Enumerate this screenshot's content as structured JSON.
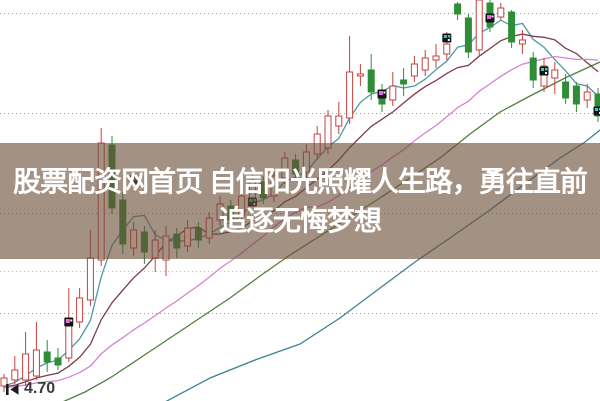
{
  "banner": {
    "line1": "股票配资网首页 自信阳光照耀人生路，勇往直前",
    "line2": "追逐无悔梦想",
    "background_color": "rgba(106,77,56,0.62)",
    "text_color": "#ffffff"
  },
  "price_axis": {
    "min_label": "4.70"
  },
  "chart_data": {
    "type": "candlestick",
    "title": "",
    "x_axis": {
      "start": 4,
      "step": 10.8,
      "body_width": 6
    },
    "y_axis": {
      "top_price": 6.6,
      "price_per_pixel": 0.005,
      "ylim": [
        4.59,
        6.6
      ],
      "gridline_prices": [
        6.535,
        6.035,
        5.535,
        5.035
      ],
      "special_line_price": 5.245,
      "visible_min_label": "4.70",
      "grid_on": true
    },
    "colors": {
      "up": "#c5423f",
      "up_fill": "#ffffff",
      "down": "#2f8d38",
      "grid": "#9b9b9b",
      "special_line": "#e2abc0",
      "marker_box": "#141414",
      "marker_teal": "#35c9c1",
      "marker_purple": "#e06ae0",
      "marker_white": "#f2f2f2"
    },
    "candles": [
      [
        4.67,
        4.73,
        4.64,
        4.71
      ],
      [
        4.7,
        4.82,
        4.68,
        4.75
      ],
      [
        4.7,
        4.94,
        4.67,
        4.83
      ],
      [
        4.72,
        4.99,
        4.7,
        4.85
      ],
      [
        4.84,
        4.9,
        4.74,
        4.79
      ],
      [
        4.81,
        4.86,
        4.75,
        4.775
      ],
      [
        4.81,
        5.16,
        4.79,
        5.0
      ],
      [
        4.99,
        5.16,
        4.96,
        5.11
      ],
      [
        5.1,
        5.45,
        5.07,
        5.31
      ],
      [
        5.3,
        5.96,
        5.27,
        5.885
      ],
      [
        5.875,
        5.92,
        5.53,
        5.56
      ],
      [
        5.6,
        5.64,
        5.33,
        5.38
      ],
      [
        5.36,
        5.49,
        5.32,
        5.45
      ],
      [
        5.44,
        5.47,
        5.28,
        5.34
      ],
      [
        5.31,
        5.45,
        5.24,
        5.4
      ],
      [
        5.3,
        5.47,
        5.22,
        5.42
      ],
      [
        5.43,
        5.46,
        5.31,
        5.36
      ],
      [
        5.37,
        5.5,
        5.34,
        5.46
      ],
      [
        5.46,
        5.49,
        5.36,
        5.4
      ],
      [
        5.41,
        5.54,
        5.38,
        5.51
      ],
      [
        5.5,
        5.62,
        5.47,
        5.58
      ],
      [
        5.57,
        5.6,
        5.46,
        5.5
      ],
      [
        5.52,
        5.65,
        5.49,
        5.62
      ],
      [
        5.61,
        5.74,
        5.58,
        5.7
      ],
      [
        5.69,
        5.72,
        5.58,
        5.61
      ],
      [
        5.62,
        5.76,
        5.59,
        5.72
      ],
      [
        5.71,
        5.84,
        5.68,
        5.81
      ],
      [
        5.8,
        5.83,
        5.7,
        5.73
      ],
      [
        5.74,
        5.88,
        5.71,
        5.84
      ],
      [
        5.83,
        5.97,
        5.8,
        5.93
      ],
      [
        5.86,
        6.05,
        5.83,
        6.02
      ],
      [
        5.97,
        6.09,
        5.93,
        6.02
      ],
      [
        6.01,
        6.42,
        5.98,
        6.24
      ],
      [
        6.22,
        6.28,
        6.17,
        6.23
      ],
      [
        6.25,
        6.33,
        6.1,
        6.14
      ],
      [
        6.12,
        6.18,
        6.04,
        6.08
      ],
      [
        6.1,
        6.24,
        6.07,
        6.17
      ],
      [
        6.2,
        6.26,
        6.12,
        6.18
      ],
      [
        6.22,
        6.32,
        6.19,
        6.28
      ],
      [
        6.25,
        6.35,
        6.22,
        6.31
      ],
      [
        6.3,
        6.38,
        6.26,
        6.32
      ],
      [
        6.33,
        6.44,
        6.3,
        6.38
      ],
      [
        6.58,
        6.59,
        6.5,
        6.53
      ],
      [
        6.51,
        6.53,
        6.31,
        6.34
      ],
      [
        6.35,
        6.6,
        6.32,
        6.6
      ],
      [
        6.585,
        6.6,
        6.44,
        6.465
      ],
      [
        6.515,
        6.585,
        6.5,
        6.56
      ],
      [
        6.54,
        6.55,
        6.36,
        6.39
      ],
      [
        6.38,
        6.45,
        6.33,
        6.4
      ],
      [
        6.31,
        6.34,
        6.16,
        6.2
      ],
      [
        6.17,
        6.31,
        6.14,
        6.27
      ],
      [
        6.21,
        6.29,
        6.13,
        6.25
      ],
      [
        6.19,
        6.23,
        6.08,
        6.11
      ],
      [
        6.17,
        6.19,
        6.04,
        6.08
      ],
      [
        6.1,
        6.18,
        6.06,
        6.14
      ],
      [
        6.13,
        6.16,
        5.99,
        6.02
      ]
    ],
    "ma_lines": [
      {
        "name": "MA5",
        "window": 5,
        "color": "#4e99a2"
      },
      {
        "name": "MA10",
        "window": 10,
        "color": "#7f3c4e"
      },
      {
        "name": "MA20",
        "window": 20,
        "color": "#db7fd0"
      }
    ],
    "ma_seed": 4.66,
    "overlay_lines": [
      {
        "name": "long-ma-green",
        "color": "#50803f",
        "points": [
          [
            58,
            4.58
          ],
          [
            85,
            4.64
          ],
          [
            110,
            4.71
          ],
          [
            140,
            4.81
          ],
          [
            170,
            4.91
          ],
          [
            200,
            5.01
          ],
          [
            230,
            5.11
          ],
          [
            260,
            5.22
          ],
          [
            290,
            5.325
          ],
          [
            320,
            5.42
          ],
          [
            350,
            5.515
          ],
          [
            380,
            5.61
          ],
          [
            410,
            5.71
          ],
          [
            440,
            5.81
          ],
          [
            470,
            5.93
          ],
          [
            500,
            6.04
          ],
          [
            530,
            6.12
          ],
          [
            565,
            6.21
          ],
          [
            600,
            6.29
          ]
        ]
      },
      {
        "name": "long-ma-blue",
        "color": "#3e8295",
        "points": [
          [
            165,
            4.59
          ],
          [
            210,
            4.71
          ],
          [
            255,
            4.8
          ],
          [
            300,
            4.88
          ],
          [
            340,
            5.01
          ],
          [
            380,
            5.16
          ],
          [
            415,
            5.29
          ],
          [
            450,
            5.41
          ],
          [
            490,
            5.55
          ],
          [
            530,
            5.7
          ],
          [
            560,
            5.81
          ],
          [
            585,
            5.89
          ],
          [
            600,
            5.95
          ]
        ]
      }
    ],
    "markers": [
      {
        "index": 6,
        "price": 4.99,
        "variant": "purple"
      },
      {
        "index": 12,
        "price": 5.7,
        "variant": "purple"
      },
      {
        "index": 23,
        "price": 5.59,
        "variant": "teal"
      },
      {
        "index": 35,
        "price": 6.13,
        "variant": "purple"
      },
      {
        "index": 41,
        "price": 6.41,
        "variant": "teal"
      },
      {
        "index": 45,
        "price": 6.51,
        "variant": "purple"
      },
      {
        "index": 50,
        "price": 6.245,
        "variant": "teal"
      },
      {
        "index": 55,
        "price": 6.045,
        "variant": "teal"
      }
    ]
  }
}
